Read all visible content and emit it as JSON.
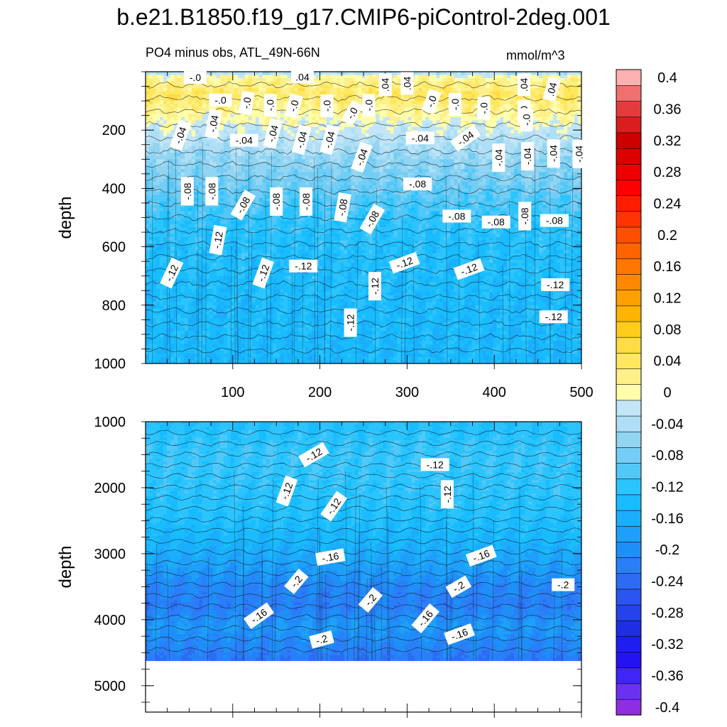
{
  "header": {
    "title": "b.e21.B1850.f19_g17.CMIP6-piControl-2deg.001",
    "subtitle": "PO4 minus obs, ATL_49N-66N",
    "units": "mmol/m^3"
  },
  "chart_data": [
    {
      "type": "contour",
      "panel": "upper",
      "ylabel": "depth",
      "xlabel": "",
      "xlim": [
        0,
        500
      ],
      "ylim": [
        1000,
        0
      ],
      "xticks": [
        100,
        200,
        300,
        400,
        500
      ],
      "yticks": [
        200,
        400,
        600,
        800,
        1000
      ],
      "profile_depths": [
        0,
        20,
        80,
        120,
        160,
        200,
        250,
        300,
        380,
        440,
        520,
        600,
        700,
        800,
        1000
      ],
      "profile_values": [
        -0.04,
        0.02,
        0.05,
        0.03,
        0.01,
        -0.01,
        -0.03,
        -0.05,
        -0.07,
        -0.09,
        -0.11,
        -0.12,
        -0.125,
        -0.13,
        -0.135
      ],
      "contour_labels": [
        {
          "text": "-.0",
          "x": 57,
          "y": 20,
          "rot": 0
        },
        {
          "text": ".04",
          "x": 180,
          "y": 18,
          "rot": 0
        },
        {
          "text": ".04",
          "x": 275,
          "y": 45,
          "rot": -90
        },
        {
          "text": ".04",
          "x": 300,
          "y": 40,
          "rot": -90
        },
        {
          "text": ".04",
          "x": 434,
          "y": 45,
          "rot": -90
        },
        {
          "text": ".04",
          "x": 466,
          "y": 60,
          "rot": -75
        },
        {
          "text": "-.0",
          "x": 86,
          "y": 97,
          "rot": 0
        },
        {
          "text": "-.0",
          "x": 116,
          "y": 107,
          "rot": -80
        },
        {
          "text": "-.0",
          "x": 143,
          "y": 115,
          "rot": -90
        },
        {
          "text": "-.0",
          "x": 170,
          "y": 117,
          "rot": -75
        },
        {
          "text": "-.0",
          "x": 208,
          "y": 117,
          "rot": -90
        },
        {
          "text": "-.0",
          "x": 256,
          "y": 115,
          "rot": -90
        },
        {
          "text": "-.0",
          "x": 328,
          "y": 102,
          "rot": -70
        },
        {
          "text": "-.0",
          "x": 355,
          "y": 112,
          "rot": -90
        },
        {
          "text": "-.0",
          "x": 388,
          "y": 125,
          "rot": -90
        },
        {
          "text": "-.0",
          "x": 237,
          "y": 142,
          "rot": -60
        },
        {
          "text": "-.0",
          "x": 434,
          "y": 137,
          "rot": -90
        },
        {
          "text": "-.0",
          "x": 437,
          "y": 165,
          "rot": -90
        },
        {
          "text": "-.04",
          "x": 78,
          "y": 178,
          "rot": -80
        },
        {
          "text": "-.04",
          "x": 40,
          "y": 218,
          "rot": -70
        },
        {
          "text": "-.04",
          "x": 113,
          "y": 235,
          "rot": 0
        },
        {
          "text": "-.04",
          "x": 146,
          "y": 212,
          "rot": -75
        },
        {
          "text": "-.04",
          "x": 179,
          "y": 233,
          "rot": -75
        },
        {
          "text": "-.04",
          "x": 211,
          "y": 233,
          "rot": -75
        },
        {
          "text": "-.04",
          "x": 248,
          "y": 293,
          "rot": -70
        },
        {
          "text": "-.04",
          "x": 315,
          "y": 227,
          "rot": 0
        },
        {
          "text": "-.04",
          "x": 367,
          "y": 228,
          "rot": -35
        },
        {
          "text": "-.04",
          "x": 405,
          "y": 295,
          "rot": -90
        },
        {
          "text": "-.04",
          "x": 438,
          "y": 290,
          "rot": -90
        },
        {
          "text": "-.04",
          "x": 468,
          "y": 280,
          "rot": -90
        },
        {
          "text": "-.04",
          "x": 497,
          "y": 282,
          "rot": -90
        },
        {
          "text": "-.08",
          "x": 48,
          "y": 410,
          "rot": -90
        },
        {
          "text": "-.08",
          "x": 76,
          "y": 410,
          "rot": -90
        },
        {
          "text": "-.08",
          "x": 112,
          "y": 457,
          "rot": -60
        },
        {
          "text": "-.08",
          "x": 150,
          "y": 445,
          "rot": -90
        },
        {
          "text": "-.08",
          "x": 184,
          "y": 445,
          "rot": -90
        },
        {
          "text": "-.08",
          "x": 226,
          "y": 465,
          "rot": -80
        },
        {
          "text": "-.08",
          "x": 260,
          "y": 505,
          "rot": -60
        },
        {
          "text": "-.08",
          "x": 312,
          "y": 385,
          "rot": 0
        },
        {
          "text": "-.08",
          "x": 357,
          "y": 495,
          "rot": 0
        },
        {
          "text": "-.08",
          "x": 402,
          "y": 515,
          "rot": 0
        },
        {
          "text": "-.08",
          "x": 435,
          "y": 495,
          "rot": -90
        },
        {
          "text": "-.08",
          "x": 469,
          "y": 510,
          "rot": 0
        },
        {
          "text": "-.12",
          "x": 83,
          "y": 577,
          "rot": -80
        },
        {
          "text": "-.12",
          "x": 30,
          "y": 690,
          "rot": -65
        },
        {
          "text": "-.12",
          "x": 135,
          "y": 690,
          "rot": -70
        },
        {
          "text": "-.12",
          "x": 181,
          "y": 666,
          "rot": 0
        },
        {
          "text": "-.12",
          "x": 263,
          "y": 735,
          "rot": -90
        },
        {
          "text": "-.12",
          "x": 297,
          "y": 655,
          "rot": -20
        },
        {
          "text": "-.12",
          "x": 371,
          "y": 677,
          "rot": -20
        },
        {
          "text": "-.12",
          "x": 235,
          "y": 860,
          "rot": -90
        },
        {
          "text": "-.12",
          "x": 470,
          "y": 730,
          "rot": 0
        },
        {
          "text": "-.12",
          "x": 468,
          "y": 840,
          "rot": 0
        }
      ]
    },
    {
      "type": "contour",
      "panel": "lower",
      "ylabel": "depth",
      "xlabel": "",
      "xlim": [
        0,
        500
      ],
      "ylim": [
        5400,
        1000
      ],
      "yticks": [
        1000,
        2000,
        3000,
        4000,
        5000
      ],
      "bottom_depth": 4620,
      "profile_depths": [
        1000,
        1500,
        2000,
        2400,
        2800,
        3200,
        3500,
        3800,
        4100,
        4400,
        4620
      ],
      "profile_values": [
        -0.12,
        -0.105,
        -0.11,
        -0.12,
        -0.14,
        -0.17,
        -0.2,
        -0.21,
        -0.18,
        -0.2,
        -0.22
      ],
      "contour_labels": [
        {
          "text": "-.12",
          "x": 193,
          "y": 1500,
          "rot": -30
        },
        {
          "text": "-.12",
          "x": 332,
          "y": 1650,
          "rot": 0
        },
        {
          "text": "-.12",
          "x": 162,
          "y": 2050,
          "rot": -70
        },
        {
          "text": "-.12",
          "x": 216,
          "y": 2280,
          "rot": -55
        },
        {
          "text": "-.12",
          "x": 346,
          "y": 2100,
          "rot": -90
        },
        {
          "text": "-.16",
          "x": 212,
          "y": 3050,
          "rot": -10
        },
        {
          "text": "-.16",
          "x": 385,
          "y": 3030,
          "rot": -20
        },
        {
          "text": "-.2",
          "x": 173,
          "y": 3420,
          "rot": -50
        },
        {
          "text": "-.2",
          "x": 359,
          "y": 3500,
          "rot": -30
        },
        {
          "text": "-.2",
          "x": 479,
          "y": 3470,
          "rot": 0
        },
        {
          "text": "-.16",
          "x": 130,
          "y": 3940,
          "rot": -35
        },
        {
          "text": "-.2",
          "x": 258,
          "y": 3700,
          "rot": -50
        },
        {
          "text": "-.16",
          "x": 321,
          "y": 3980,
          "rot": -50
        },
        {
          "text": "-.16",
          "x": 360,
          "y": 4220,
          "rot": -20
        },
        {
          "text": "-.2",
          "x": 202,
          "y": 4300,
          "rot": -15
        }
      ]
    },
    {
      "type": "colorbar",
      "levels": [
        -0.4,
        -0.38,
        -0.36,
        -0.34,
        -0.32,
        -0.3,
        -0.28,
        -0.26,
        -0.24,
        -0.22,
        -0.2,
        -0.18,
        -0.16,
        -0.14,
        -0.12,
        -0.1,
        -0.08,
        -0.06,
        -0.04,
        -0.02,
        0,
        0.02,
        0.04,
        0.06,
        0.08,
        0.1,
        0.12,
        0.14,
        0.16,
        0.18,
        0.2,
        0.22,
        0.24,
        0.26,
        0.28,
        0.3,
        0.32,
        0.34,
        0.36,
        0.38,
        0.4
      ],
      "colors": [
        "#8e2ee0",
        "#6a32f0",
        "#3f25f8",
        "#2512f0",
        "#1f1ef0",
        "#1e2ee0",
        "#2443e8",
        "#2a55f0",
        "#2c6cf4",
        "#2a7ff8",
        "#1e8ff8",
        "#1ea0fa",
        "#1aaefc",
        "#18bcff",
        "#2cc4ff",
        "#52c8f8",
        "#74cdf4",
        "#92d5f2",
        "#aedff6",
        "#c2e6f8",
        "#fffeaa",
        "#fff08a",
        "#ffe860",
        "#ffdc44",
        "#ffcc1c",
        "#ffb400",
        "#ffa000",
        "#ff8800",
        "#ff7600",
        "#ff6400",
        "#ff4e00",
        "#ff3400",
        "#ff1c00",
        "#ff0000",
        "#ee0000",
        "#dc0000",
        "#cc0000",
        "#d81e1e",
        "#e43c3c",
        "#f07070",
        "#ffb0b0"
      ],
      "tick_labels": [
        "-0.4",
        "-0.36",
        "-0.32",
        "-0.28",
        "-0.24",
        "-0.2",
        "-0.16",
        "-0.12",
        "-0.08",
        "-0.04",
        "0",
        "0.04",
        "0.08",
        "0.12",
        "0.16",
        "0.2",
        "0.24",
        "0.28",
        "0.32",
        "0.36",
        "0.4"
      ]
    }
  ]
}
